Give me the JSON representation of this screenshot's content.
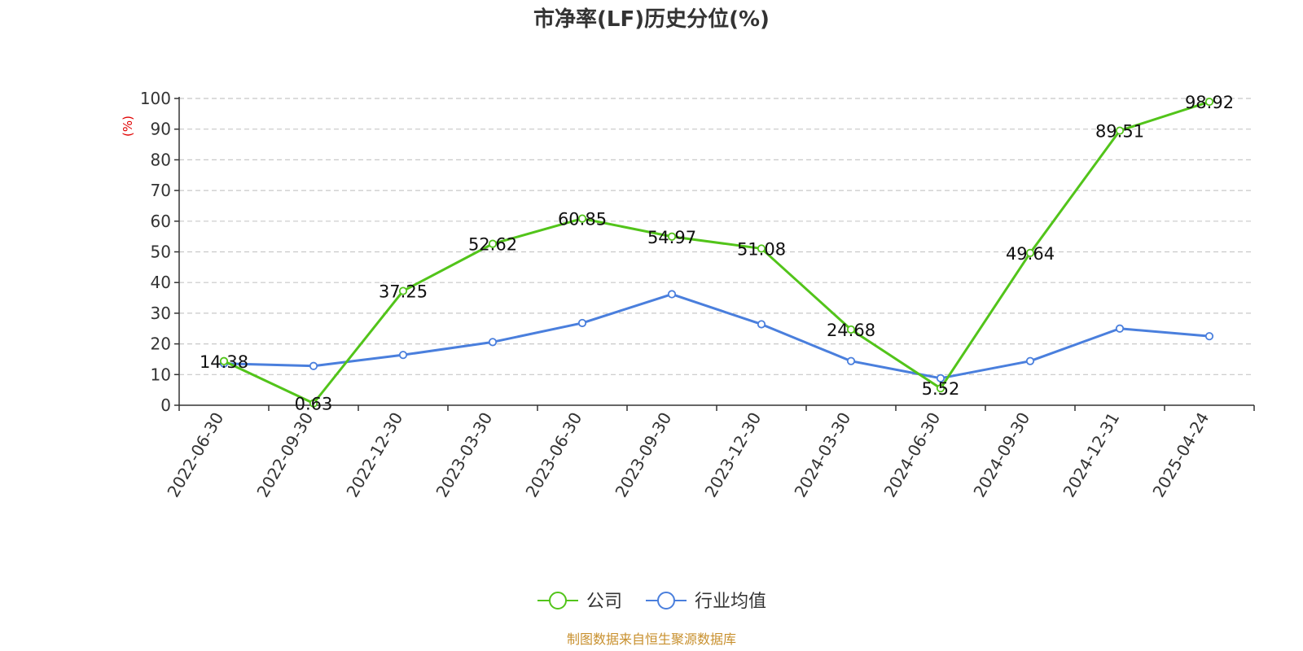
{
  "chart_data": {
    "type": "line",
    "title": "市净率(LF)历史分位(%)",
    "ylabel": "(%)",
    "ylim": [
      0,
      100
    ],
    "yticks": [
      0,
      10,
      20,
      30,
      40,
      50,
      60,
      70,
      80,
      90,
      100
    ],
    "grid": true,
    "legend_position": "bottom",
    "categories": [
      "2022-06-30",
      "2022-09-30",
      "2022-12-30",
      "2023-03-30",
      "2023-06-30",
      "2023-09-30",
      "2023-12-30",
      "2024-03-30",
      "2024-06-30",
      "2024-09-30",
      "2024-12-31",
      "2025-04-24"
    ],
    "series": [
      {
        "name": "公司",
        "color": "#52c41a",
        "values": [
          14.38,
          0.63,
          37.25,
          52.62,
          60.85,
          54.97,
          51.08,
          24.68,
          5.52,
          49.64,
          89.51,
          98.92
        ],
        "labels": [
          "14.38",
          "0.63",
          "37.25",
          "52.62",
          "60.85",
          "54.97",
          "51.08",
          "24.68",
          "5.52",
          "49.64",
          "89.51",
          "98.92"
        ]
      },
      {
        "name": "行业均值",
        "color": "#4a7fdd",
        "values": [
          13.6,
          12.8,
          16.4,
          20.6,
          26.8,
          36.2,
          26.4,
          14.4,
          8.8,
          14.4,
          25.0,
          22.5
        ]
      }
    ],
    "source": "制图数据来自恒生聚源数据库"
  }
}
